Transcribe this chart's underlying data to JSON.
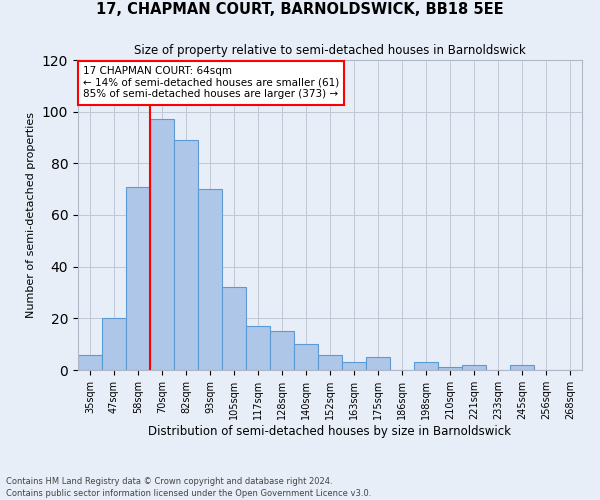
{
  "title": "17, CHAPMAN COURT, BARNOLDSWICK, BB18 5EE",
  "subtitle": "Size of property relative to semi-detached houses in Barnoldswick",
  "xlabel": "Distribution of semi-detached houses by size in Barnoldswick",
  "ylabel": "Number of semi-detached properties",
  "categories": [
    "35sqm",
    "47sqm",
    "58sqm",
    "70sqm",
    "82sqm",
    "93sqm",
    "105sqm",
    "117sqm",
    "128sqm",
    "140sqm",
    "152sqm",
    "163sqm",
    "175sqm",
    "186sqm",
    "198sqm",
    "210sqm",
    "221sqm",
    "233sqm",
    "245sqm",
    "256sqm",
    "268sqm"
  ],
  "values": [
    6,
    20,
    71,
    97,
    89,
    70,
    32,
    17,
    15,
    10,
    6,
    3,
    5,
    0,
    3,
    1,
    2,
    0,
    2,
    0,
    0
  ],
  "bar_color": "#aec6e8",
  "bar_edge_color": "#5b9bd5",
  "grid_color": "#c0c8d8",
  "background_color": "#e8eef8",
  "vline_x": 2.5,
  "vline_color": "red",
  "annotation_text": "17 CHAPMAN COURT: 64sqm\n← 14% of semi-detached houses are smaller (61)\n85% of semi-detached houses are larger (373) →",
  "annotation_box_color": "white",
  "annotation_box_edge": "red",
  "ylim": [
    0,
    120
  ],
  "footnote1": "Contains HM Land Registry data © Crown copyright and database right 2024.",
  "footnote2": "Contains public sector information licensed under the Open Government Licence v3.0."
}
